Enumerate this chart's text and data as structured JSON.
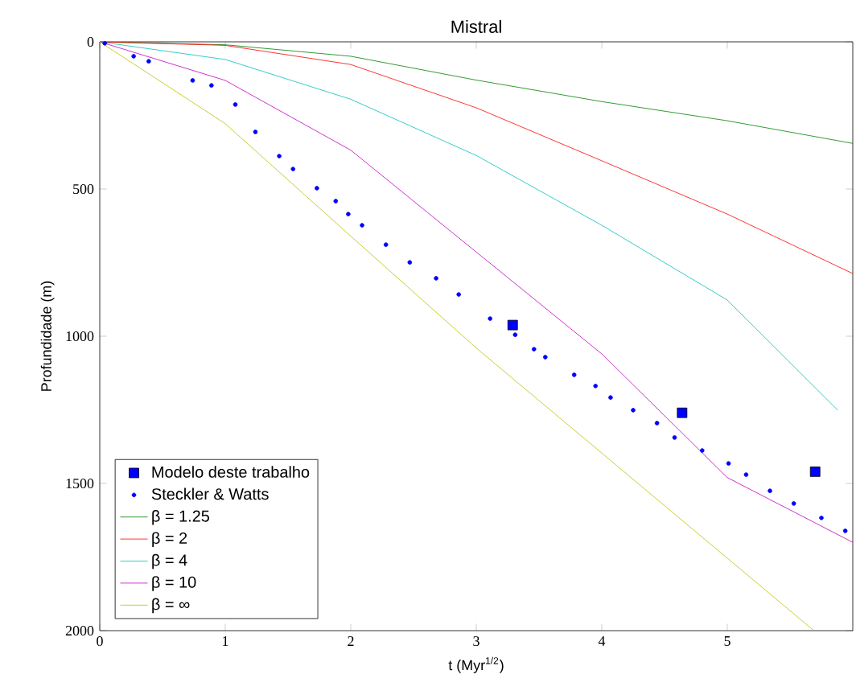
{
  "chart_data": {
    "type": "line",
    "title": "Mistral",
    "xlabel": "t (Myr$^{1/2}$)",
    "ylabel": "Profundidade (m)",
    "xlim": [
      0,
      6
    ],
    "xticks": [
      0,
      1,
      2,
      3,
      4,
      5
    ],
    "ylim": [
      2000,
      0
    ],
    "yticks": [
      0,
      500,
      1000,
      1500,
      2000
    ],
    "grid": false,
    "legend": "bottom left",
    "series": [
      {
        "name": "Modelo deste trabalho",
        "type": "scatter",
        "marker": "square",
        "color": "#0000ff",
        "x": [
          3.29,
          4.64,
          5.7
        ],
        "values": [
          962,
          1260,
          1460
        ]
      },
      {
        "name": "Steckler & Watts",
        "type": "scatter",
        "marker": "circle",
        "color": "#0000ff",
        "x": [
          0.04,
          0.27,
          0.39,
          0.74,
          0.89,
          1.08,
          1.24,
          1.43,
          1.54,
          1.73,
          1.88,
          1.98,
          2.09,
          2.28,
          2.47,
          2.68,
          2.86,
          3.11,
          3.31,
          3.46,
          3.55,
          3.78,
          3.95,
          4.07,
          4.25,
          4.44,
          4.58,
          4.8,
          5.01,
          5.15,
          5.34,
          5.53,
          5.75,
          5.94
        ],
        "values": [
          5,
          49,
          66,
          131,
          148,
          213,
          306,
          388,
          432,
          497,
          541,
          585,
          623,
          689,
          749,
          803,
          858,
          940,
          995,
          1044,
          1071,
          1131,
          1169,
          1208,
          1251,
          1295,
          1344,
          1388,
          1432,
          1470,
          1525,
          1568,
          1617,
          1661
        ]
      },
      {
        "name": "β = 1.25",
        "marker": "none",
        "color": "#008000",
        "x": [
          0,
          1,
          2,
          3,
          4,
          5,
          6
        ],
        "values": [
          0,
          10,
          49,
          130,
          203,
          268,
          345
        ]
      },
      {
        "name": "β = 2",
        "marker": "none",
        "color": "#ff0000",
        "x": [
          0,
          1,
          2,
          3,
          4,
          5,
          6
        ],
        "values": [
          0,
          12,
          77,
          224,
          404,
          585,
          787
        ]
      },
      {
        "name": "β = 4",
        "marker": "none",
        "color": "#00bfbf",
        "x": [
          0,
          1,
          2,
          3,
          4,
          5,
          5.88
        ],
        "values": [
          0,
          60,
          195,
          386,
          623,
          877,
          1251
        ]
      },
      {
        "name": "β = 10",
        "marker": "none",
        "color": "#bf00bf",
        "x": [
          0,
          1,
          2,
          3,
          4,
          5,
          6
        ],
        "values": [
          0,
          131,
          368,
          714,
          1060,
          1480,
          1700
        ]
      },
      {
        "name": "β = ∞",
        "marker": "none",
        "color": "#bfbf00",
        "x": [
          0,
          1,
          2,
          3,
          5.69
        ],
        "values": [
          0,
          278,
          660,
          1040,
          2000
        ]
      }
    ]
  }
}
